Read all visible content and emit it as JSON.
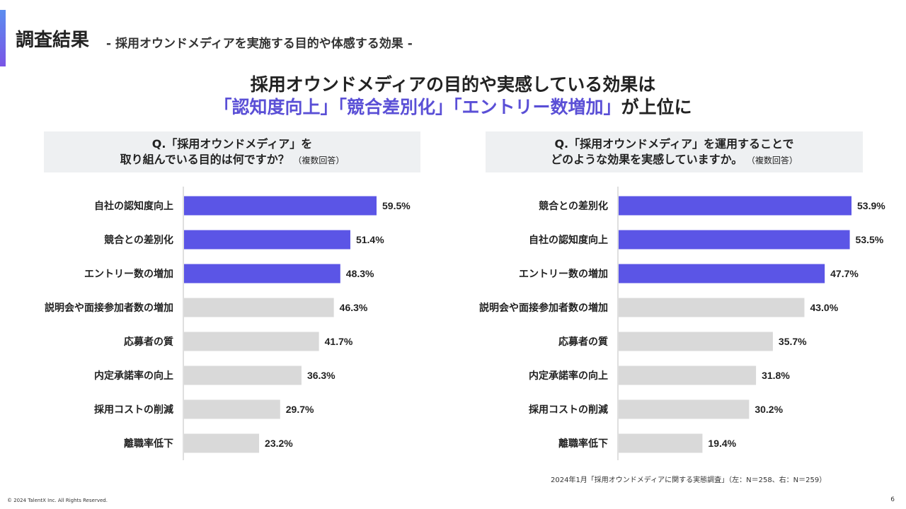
{
  "header": {
    "title": "調査結果",
    "subtitle": "- 採用オウンドメディアを実施する目的や体感する効果 -"
  },
  "headline": {
    "line1": "採用オウンドメディアの目的や実感している効果は",
    "line2_highlight": "「認知度向上」「競合差別化」「エントリー数増加」",
    "line2_suffix": "が上位に"
  },
  "left_question": {
    "line1": "Q.「採用オウンドメディア」を",
    "line2": "取り組んでいる目的は何ですか？",
    "note": "（複数回答）"
  },
  "right_question": {
    "line1": "Q.「採用オウンドメディア」を運用することで",
    "line2": "どのような効果を実感していますか。",
    "note": "（複数回答）"
  },
  "colors": {
    "highlight": "#5b55e6",
    "other": "#d9d9d9",
    "axis": "#bfbfbf"
  },
  "chart_data": [
    {
      "type": "bar",
      "orientation": "horizontal",
      "title": "Q.「採用オウンドメディア」を取り組んでいる目的は何ですか？（複数回答）",
      "unit": "%",
      "categories": [
        "自社の認知度向上",
        "競合との差別化",
        "エントリー数の増加",
        "説明会や面接参加者数の増加",
        "応募者の質",
        "内定承諾率の向上",
        "採用コストの削減",
        "離職率低下"
      ],
      "values": [
        59.5,
        51.4,
        48.3,
        46.3,
        41.7,
        36.3,
        29.7,
        23.2
      ],
      "value_labels": [
        "59.5%",
        "51.4%",
        "48.3%",
        "46.3%",
        "41.7%",
        "36.3%",
        "29.7%",
        "23.2%"
      ],
      "highlighted": [
        true,
        true,
        true,
        false,
        false,
        false,
        false,
        false
      ],
      "xlim": [
        0,
        70
      ]
    },
    {
      "type": "bar",
      "orientation": "horizontal",
      "title": "Q.「採用オウンドメディア」を運用することでどのような効果を実感していますか。（複数回答）",
      "unit": "%",
      "categories": [
        "競合との差別化",
        "自社の認知度向上",
        "エントリー数の増加",
        "説明会や面接参加者数の増加",
        "応募者の質",
        "内定承諾率の向上",
        "採用コストの削減",
        "離職率低下"
      ],
      "values": [
        53.9,
        53.5,
        47.7,
        43.0,
        35.7,
        31.8,
        30.2,
        19.4
      ],
      "value_labels": [
        "53.9%",
        "53.5%",
        "47.7%",
        "43.0%",
        "35.7%",
        "31.8%",
        "30.2%",
        "19.4%"
      ],
      "highlighted": [
        true,
        true,
        true,
        false,
        false,
        false,
        false,
        false
      ],
      "xlim": [
        0,
        58
      ]
    }
  ],
  "footer": {
    "source": "2024年1月「採用オウンドメディアに関する実態調査」（左：N＝258、右：N＝259）",
    "copyright": "© 2024  TalentX Inc. All Rights Reserved.",
    "page": "6"
  }
}
